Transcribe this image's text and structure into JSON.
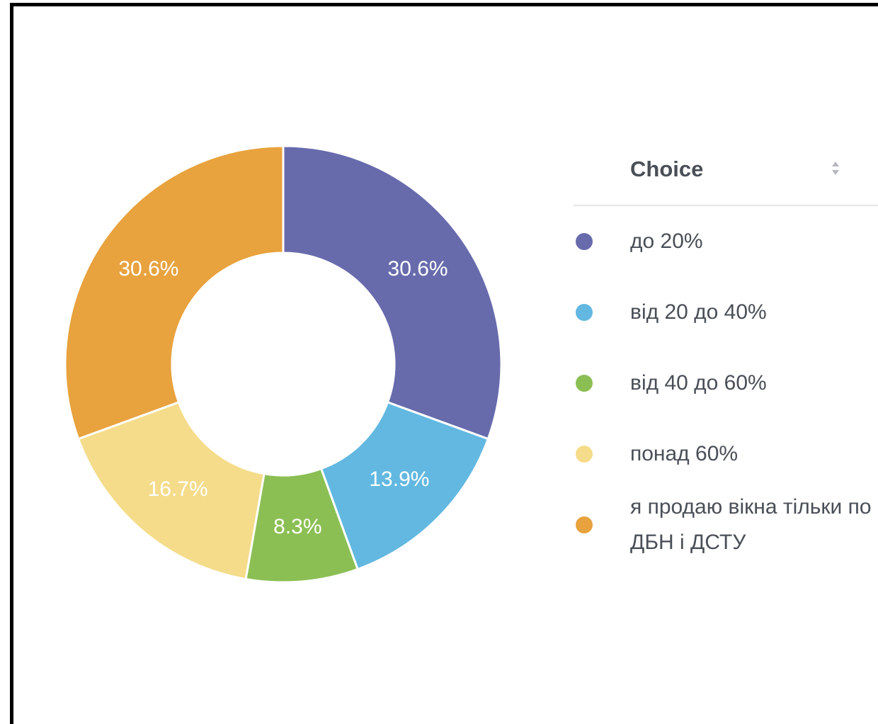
{
  "chart_data": {
    "type": "pie",
    "legend_title": "Choice",
    "categories": [
      "до 20%",
      "від 20 до 40%",
      "від 40 до 60%",
      "понад 60%",
      "я продаю вікна тільки по ДБН і ДСТУ"
    ],
    "values": [
      30.6,
      13.9,
      8.3,
      16.7,
      30.6
    ],
    "value_labels": [
      "30.6%",
      "13.9%",
      "8.3%",
      "16.7%",
      "30.6%"
    ],
    "colors": [
      "#676bac",
      "#62b8e0",
      "#8bbf54",
      "#f5dc8a",
      "#e8a23e"
    ]
  }
}
